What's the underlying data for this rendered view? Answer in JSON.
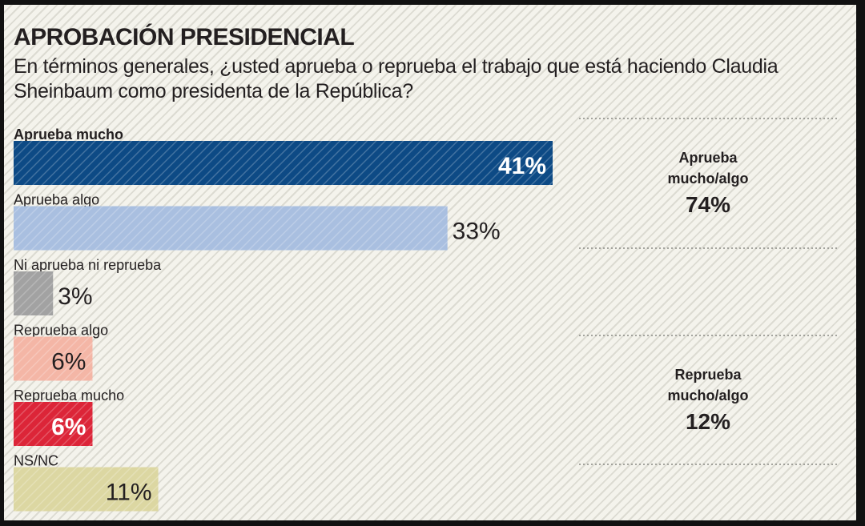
{
  "chart_data": {
    "type": "bar",
    "orientation": "horizontal",
    "title": "APROBACIÓN PRESIDENCIAL",
    "subtitle": "En términos generales, ¿usted aprueba o reprueba el trabajo que está haciendo Claudia Sheinbaum como presidenta de la República?",
    "xlim": [
      0,
      50
    ],
    "categories": [
      "Aprueba mucho",
      "Aprueba algo",
      "Ni aprueba ni reprueba",
      "Reprueba algo",
      "Reprueba mucho",
      "NS/NC"
    ],
    "values": [
      41,
      33,
      3,
      6,
      6,
      11
    ],
    "value_labels": [
      "41%",
      "33%",
      "3%",
      "6%",
      "6%",
      "11%"
    ],
    "colors": [
      "#0d4a85",
      "#a9bfe0",
      "#a2a2a2",
      "#f4b6a6",
      "#dc2538",
      "#dcd7a2"
    ],
    "summaries": [
      {
        "line1": "Aprueba",
        "line2": "mucho/algo",
        "value": "74%"
      },
      {
        "line1": "Reprueba",
        "line2": "mucho/algo",
        "value": "12%"
      }
    ]
  }
}
